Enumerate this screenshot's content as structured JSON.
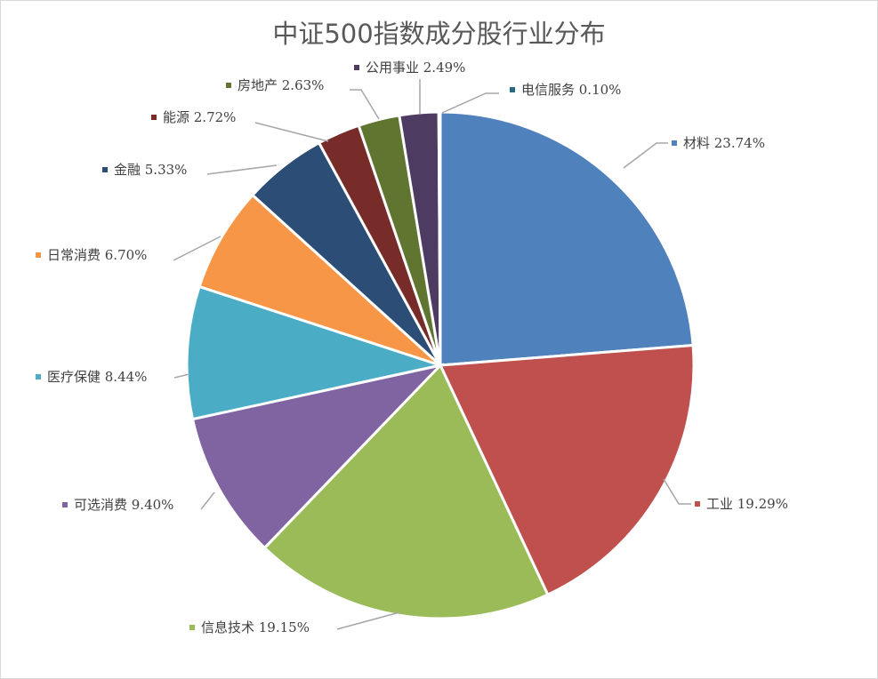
{
  "chart_data": {
    "type": "pie",
    "title": "中证500指数成分股行业分布",
    "start_angle": "12 o'clock, clockwise",
    "legend": "none (data labels with leader lines)",
    "slices": [
      {
        "name": "材料",
        "value": 23.74,
        "color": "#4F81BD"
      },
      {
        "name": "工业",
        "value": 19.29,
        "color": "#C0504D"
      },
      {
        "name": "信息技术",
        "value": 19.15,
        "color": "#9BBB59"
      },
      {
        "name": "可选消费",
        "value": 9.4,
        "color": "#8064A2"
      },
      {
        "name": "医疗保健",
        "value": 8.44,
        "color": "#4BACC6"
      },
      {
        "name": "日常消费",
        "value": 6.7,
        "color": "#F79646"
      },
      {
        "name": "金融",
        "value": 5.33,
        "color": "#2C4D75"
      },
      {
        "name": "能源",
        "value": 2.72,
        "color": "#772C2A"
      },
      {
        "name": "房地产",
        "value": 2.63,
        "color": "#5F7530"
      },
      {
        "name": "公用事业",
        "value": 2.49,
        "color": "#4D3B62"
      },
      {
        "name": "电信服务",
        "value": 0.1,
        "color": "#276A7C"
      }
    ]
  }
}
